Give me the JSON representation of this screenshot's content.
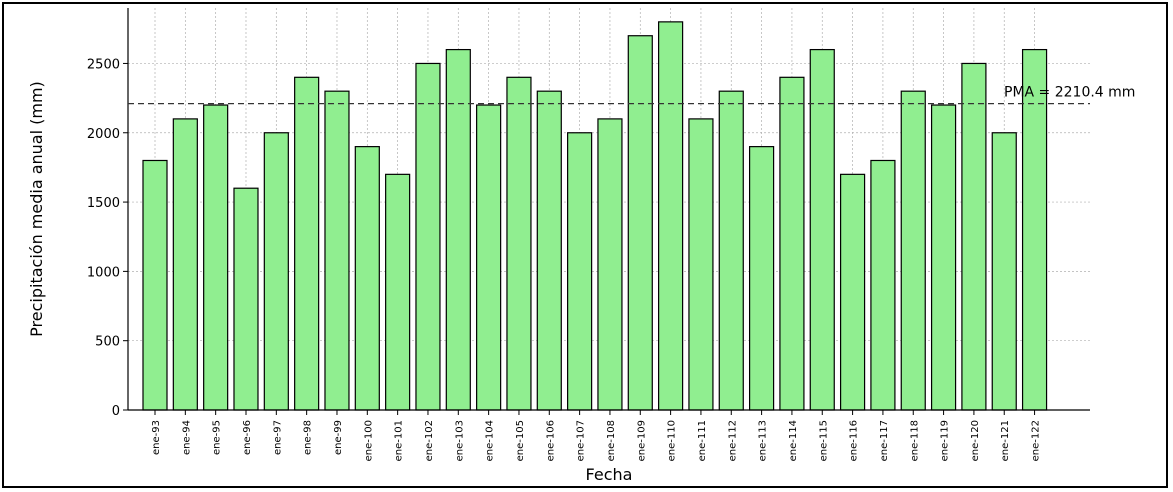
{
  "chart_data": {
    "type": "bar",
    "title": "",
    "xlabel": "Fecha",
    "ylabel": "Precipitación media anual (mm)",
    "ylim": [
      0,
      2900
    ],
    "yticks": [
      0,
      500,
      1000,
      1500,
      2000,
      2500
    ],
    "grid": true,
    "bar_color": "#90ee90",
    "bar_edge_color": "#000000",
    "categories": [
      "ene-93",
      "ene-94",
      "ene-95",
      "ene-96",
      "ene-97",
      "ene-98",
      "ene-99",
      "ene-100",
      "ene-101",
      "ene-102",
      "ene-103",
      "ene-104",
      "ene-105",
      "ene-106",
      "ene-107",
      "ene-108",
      "ene-109",
      "ene-110",
      "ene-111",
      "ene-112",
      "ene-113",
      "ene-114",
      "ene-115",
      "ene-116",
      "ene-117",
      "ene-118",
      "ene-119",
      "ene-120",
      "ene-121",
      "ene-122"
    ],
    "values": [
      1800,
      2100,
      2200,
      1600,
      2000,
      2400,
      2300,
      1900,
      1700,
      2500,
      2600,
      2200,
      2400,
      2300,
      2000,
      2100,
      2700,
      2800,
      2100,
      2300,
      1900,
      2400,
      2600,
      1700,
      1800,
      2300,
      2200,
      2500,
      2000,
      2600
    ],
    "reference_line": {
      "value": 2210.4,
      "label": "PMA = 2210.4 mm",
      "style": "dashed"
    }
  }
}
